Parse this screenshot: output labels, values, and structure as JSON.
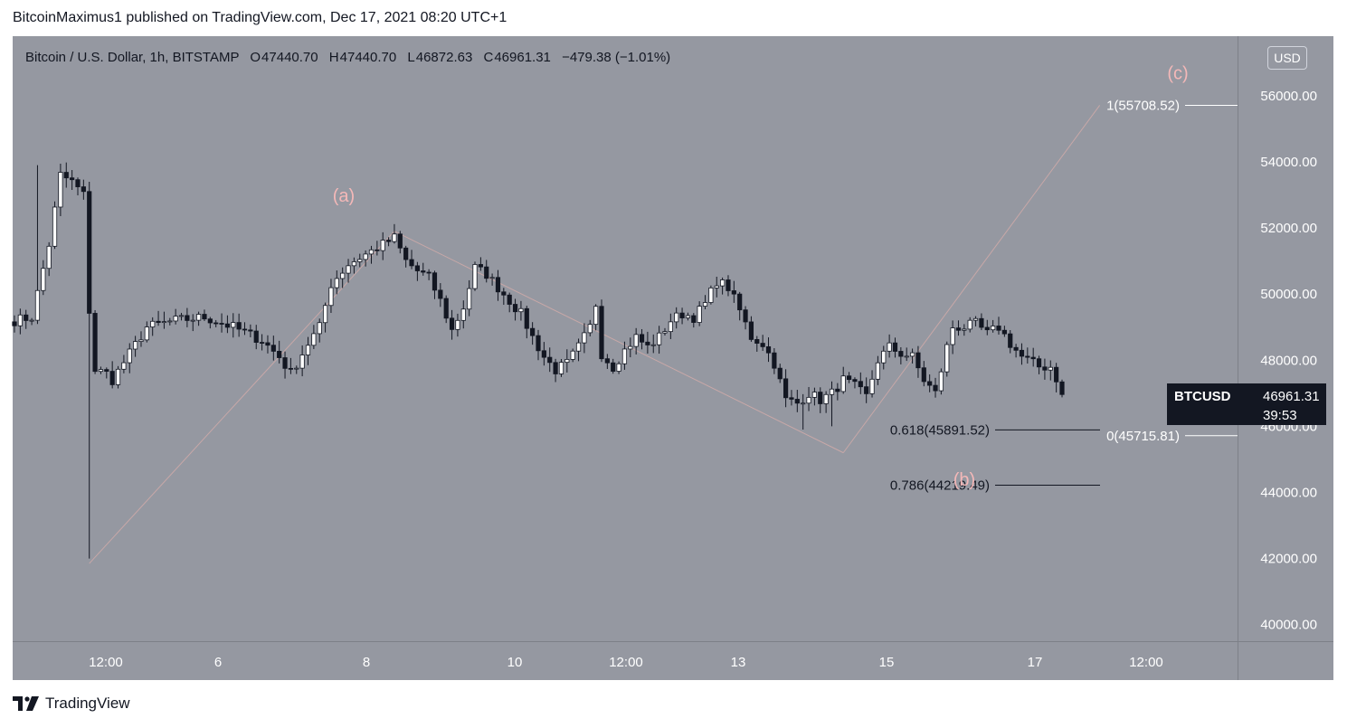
{
  "header": {
    "text": "BitcoinMaximus1 published on TradingView.com, Dec 17, 2021 08:20 UTC+1"
  },
  "legend": {
    "symbol": "Bitcoin / U.S. Dollar, 1h, BITSTAMP",
    "open_label": "O",
    "open": "47440.70",
    "high_label": "H",
    "high": "47440.70",
    "low_label": "L",
    "low": "46872.63",
    "close_label": "C",
    "close": "46961.31",
    "change": "−479.38 (−1.01%)"
  },
  "currency_button": "USD",
  "price_tag": {
    "symbol": "BTCUSD",
    "price": "46961.31",
    "countdown": "39:53"
  },
  "footer": {
    "brand": "TradingView"
  },
  "colors": {
    "background": "#9598a1",
    "candle": "#131722",
    "wave_line": "#c8a8a8",
    "wave_label": "#f4b8b8",
    "fib_line": "#131722",
    "fib_line_white": "#ffffff"
  },
  "chart_data": {
    "type": "candlestick",
    "ylim": [
      39500,
      57800
    ],
    "y_ticks": [
      "56000.00",
      "54000.00",
      "52000.00",
      "50000.00",
      "48000.00",
      "46000.00",
      "44000.00",
      "42000.00",
      "40000.00"
    ],
    "x_ticks": [
      "12:00",
      "6",
      "8",
      "10",
      "12:00",
      "13",
      "15",
      "17",
      "12:00"
    ],
    "close_path": [
      [
        0,
        49200
      ],
      [
        3,
        49300
      ],
      [
        6,
        51500
      ],
      [
        8,
        53600
      ],
      [
        10,
        53400
      ],
      [
        12,
        53000
      ],
      [
        13,
        49500
      ],
      [
        14,
        47700
      ],
      [
        16,
        47600
      ],
      [
        17,
        47400
      ],
      [
        20,
        48200
      ],
      [
        23,
        49000
      ],
      [
        28,
        49200
      ],
      [
        33,
        49300
      ],
      [
        38,
        49000
      ],
      [
        43,
        48600
      ],
      [
        46,
        48100
      ],
      [
        48,
        47600
      ],
      [
        51,
        48500
      ],
      [
        53,
        49000
      ],
      [
        55,
        50300
      ],
      [
        58,
        50900
      ],
      [
        62,
        51300
      ],
      [
        66,
        51700
      ],
      [
        68,
        51000
      ],
      [
        70,
        50700
      ],
      [
        72,
        50500
      ],
      [
        74,
        49800
      ],
      [
        76,
        48900
      ],
      [
        78,
        49600
      ],
      [
        80,
        50800
      ],
      [
        82,
        50600
      ],
      [
        84,
        50200
      ],
      [
        86,
        49800
      ],
      [
        88,
        49400
      ],
      [
        90,
        48700
      ],
      [
        92,
        48100
      ],
      [
        94,
        47700
      ],
      [
        96,
        47900
      ],
      [
        98,
        48400
      ],
      [
        100,
        49000
      ],
      [
        101,
        49700
      ],
      [
        102,
        48200
      ],
      [
        104,
        47800
      ],
      [
        106,
        48300
      ],
      [
        108,
        48700
      ],
      [
        110,
        48400
      ],
      [
        112,
        48700
      ],
      [
        114,
        49200
      ],
      [
        116,
        49400
      ],
      [
        118,
        49300
      ],
      [
        120,
        49700
      ],
      [
        122,
        50400
      ],
      [
        124,
        50200
      ],
      [
        126,
        49500
      ],
      [
        128,
        48700
      ],
      [
        130,
        48500
      ],
      [
        132,
        47900
      ],
      [
        134,
        46800
      ],
      [
        136,
        46700
      ],
      [
        138,
        47000
      ],
      [
        140,
        46800
      ],
      [
        142,
        47000
      ],
      [
        144,
        47400
      ],
      [
        146,
        47200
      ],
      [
        148,
        46900
      ],
      [
        150,
        48000
      ],
      [
        152,
        48400
      ],
      [
        154,
        48200
      ],
      [
        156,
        48100
      ],
      [
        158,
        47400
      ],
      [
        160,
        47000
      ],
      [
        162,
        48400
      ],
      [
        163,
        49000
      ],
      [
        165,
        49000
      ],
      [
        167,
        49100
      ],
      [
        169,
        48800
      ],
      [
        171,
        49000
      ],
      [
        173,
        48500
      ],
      [
        175,
        48100
      ],
      [
        177,
        47900
      ],
      [
        178,
        47800
      ],
      [
        180,
        47800
      ],
      [
        182,
        47100
      ]
    ],
    "wave_labels": [
      {
        "text": "(a)",
        "price": 52800
      },
      {
        "text": "(b)",
        "price": 44200
      },
      {
        "text": "(c)",
        "price": 56500
      }
    ],
    "fib_levels": [
      {
        "label": "1(55708.52)",
        "value": 55708.52
      },
      {
        "label": "0(45715.81)",
        "value": 45715.81
      },
      {
        "label": "0.618(45891.52)",
        "value": 45891.52
      },
      {
        "label": "0.786(44219.49)",
        "value": 44219.49
      }
    ]
  }
}
